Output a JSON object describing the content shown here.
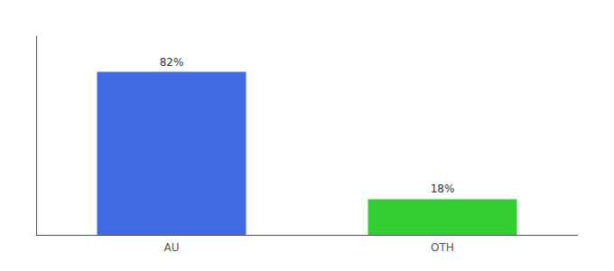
{
  "chart_data": {
    "type": "bar",
    "categories": [
      "AU",
      "OTH"
    ],
    "values": [
      82,
      18
    ],
    "value_labels": [
      "82%",
      "18%"
    ],
    "colors": [
      "#4169E1",
      "#32CD32"
    ],
    "ylim": [
      0,
      100
    ],
    "tick_labels": "x",
    "data_labels": true,
    "grid": false
  }
}
